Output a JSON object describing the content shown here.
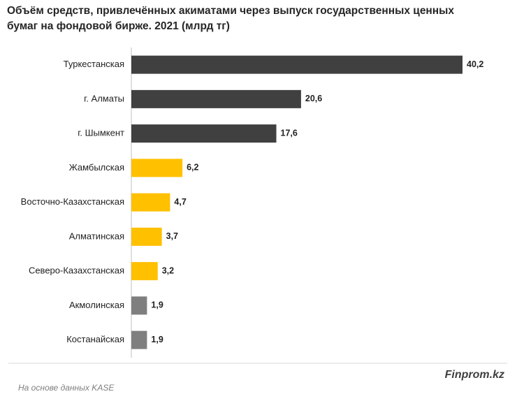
{
  "chart_data": {
    "type": "bar",
    "orientation": "horizontal",
    "title": [
      "Объём средств, привлечённых акиматами через выпуск государственных ценных",
      "бумаг на фондовой бирже. 2021  (млрд тг)"
    ],
    "categories": [
      "Туркестанская",
      "г. Алматы",
      "г. Шымкент",
      "Жамбылская",
      "Восточно-Казахстанская",
      "Алматинская",
      "Северо-Казахстанская",
      "Акмолинская",
      "Костанайская"
    ],
    "values": [
      40.2,
      20.6,
      17.6,
      6.2,
      4.7,
      3.7,
      3.2,
      1.9,
      1.9
    ],
    "value_labels": [
      "40,2",
      "20,6",
      "17,6",
      "6,2",
      "4,7",
      "3,7",
      "3,2",
      "1,9",
      "1,9"
    ],
    "colors": [
      "#404040",
      "#404040",
      "#404040",
      "#ffc000",
      "#ffc000",
      "#ffc000",
      "#ffc000",
      "#7f7f7f",
      "#7f7f7f"
    ],
    "brand": "Finprom.kz",
    "source": "На основе данных KASE"
  }
}
